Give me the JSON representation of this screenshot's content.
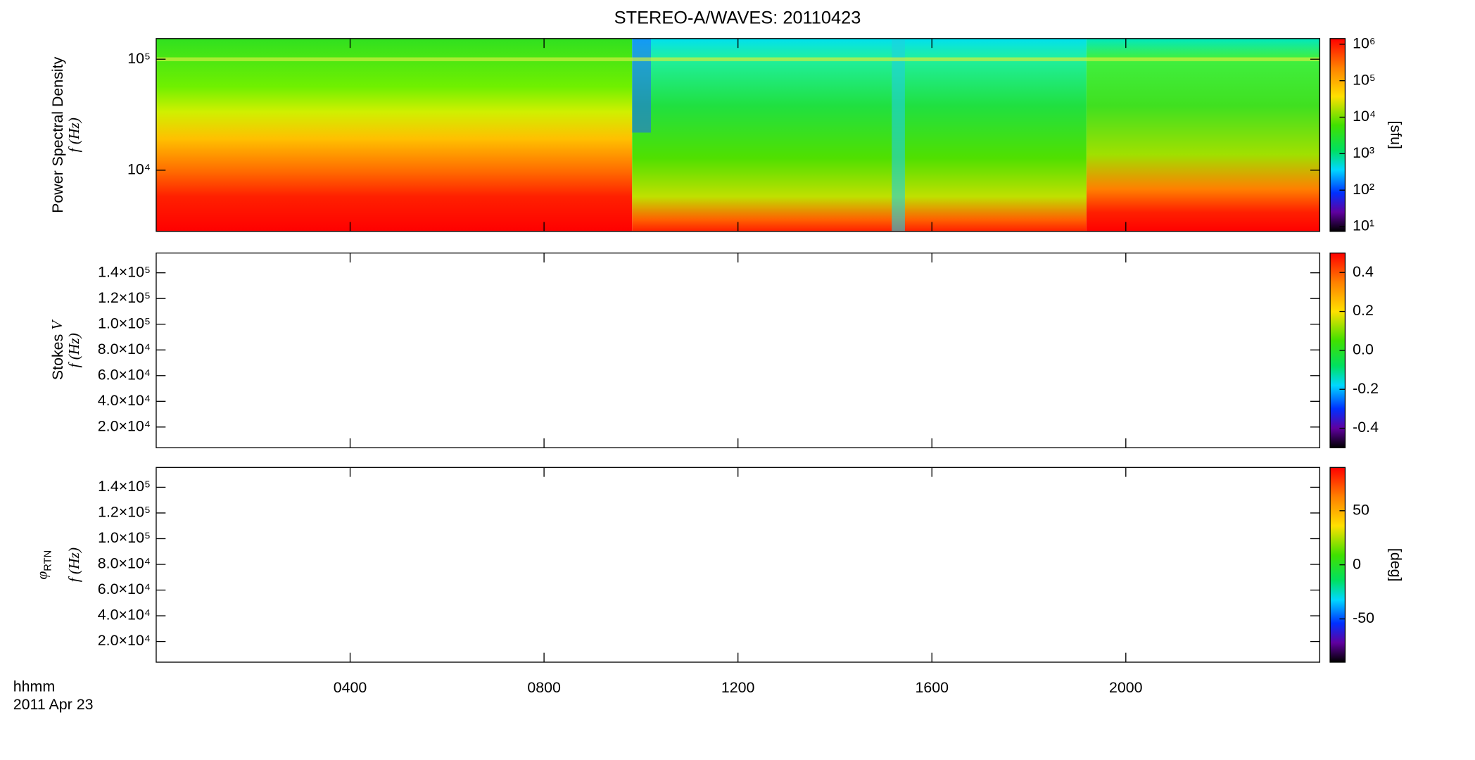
{
  "chart_data": [
    {
      "type": "spectrogram",
      "title": "STEREO-A/WAVES: 20110423",
      "ylabel": "Power Spectral Density",
      "ylabel2": "f (Hz)",
      "log_scale": true,
      "ylim": [
        2810,
        153500
      ],
      "yticks": [
        {
          "value": 10000,
          "label": "10⁴"
        },
        {
          "value": 100000,
          "label": "10⁵"
        }
      ],
      "xlim": [
        0,
        24
      ],
      "xticks": [
        4,
        8,
        12,
        16,
        20
      ],
      "colorbar": {
        "label": "[sfu]",
        "log_scale": true,
        "lim": [
          7.4,
          1430000
        ],
        "ticks": [
          {
            "value": 10,
            "label": "10¹"
          },
          {
            "value": 100,
            "label": "10²"
          },
          {
            "value": 1000,
            "label": "10³"
          },
          {
            "value": 10000,
            "label": "10⁴"
          },
          {
            "value": 100000,
            "label": "10⁵"
          },
          {
            "value": 1000000,
            "label": "10⁶"
          }
        ]
      }
    },
    {
      "type": "spectrogram",
      "ylabel": "Stokes",
      "ylabel_symbol": "V",
      "ylabel2": "f (Hz)",
      "ylim": [
        3900,
        155400
      ],
      "yticks": [
        {
          "value": 20000,
          "label": "2.0×10⁴"
        },
        {
          "value": 40000,
          "label": "4.0×10⁴"
        },
        {
          "value": 60000,
          "label": "6.0×10⁴"
        },
        {
          "value": 80000,
          "label": "8.0×10⁴"
        },
        {
          "value": 100000,
          "label": "1.0×10⁵"
        },
        {
          "value": 120000,
          "label": "1.2×10⁵"
        },
        {
          "value": 140000,
          "label": "1.4×10⁵"
        }
      ],
      "xlim": [
        0,
        24
      ],
      "xticks": [
        4,
        8,
        12,
        16,
        20
      ],
      "colorbar": {
        "lim": [
          -0.5,
          0.5
        ],
        "ticks": [
          {
            "value": -0.4,
            "label": "-0.4"
          },
          {
            "value": -0.2,
            "label": "-0.2"
          },
          {
            "value": 0,
            "label": "0.0"
          },
          {
            "value": 0.2,
            "label": "0.2"
          },
          {
            "value": 0.4,
            "label": "0.4"
          }
        ]
      }
    },
    {
      "type": "spectrogram",
      "ylabel_symbol": "φ",
      "ylabel_sub": "RTN",
      "ylabel2": "f (Hz)",
      "ylim": [
        3900,
        155400
      ],
      "yticks": [
        {
          "value": 20000,
          "label": "2.0×10⁴"
        },
        {
          "value": 40000,
          "label": "4.0×10⁴"
        },
        {
          "value": 60000,
          "label": "6.0×10⁴"
        },
        {
          "value": 80000,
          "label": "8.0×10⁴"
        },
        {
          "value": 100000,
          "label": "1.0×10⁵"
        },
        {
          "value": 120000,
          "label": "1.2×10⁵"
        },
        {
          "value": 140000,
          "label": "1.4×10⁵"
        }
      ],
      "xlim": [
        0,
        24
      ],
      "xticks": [
        {
          "value": 4,
          "label": "0400"
        },
        {
          "value": 8,
          "label": "0800"
        },
        {
          "value": 12,
          "label": "1200"
        },
        {
          "value": 16,
          "label": "1600"
        },
        {
          "value": 20,
          "label": "2000"
        }
      ],
      "xlabel": "hhmm",
      "date": "2011 Apr 23",
      "colorbar": {
        "label": "[deg]",
        "lim": [
          -90,
          90
        ],
        "ticks": [
          {
            "value": -50,
            "label": "-50"
          },
          {
            "value": 0,
            "label": "0"
          },
          {
            "value": 50,
            "label": "50"
          }
        ]
      }
    }
  ]
}
